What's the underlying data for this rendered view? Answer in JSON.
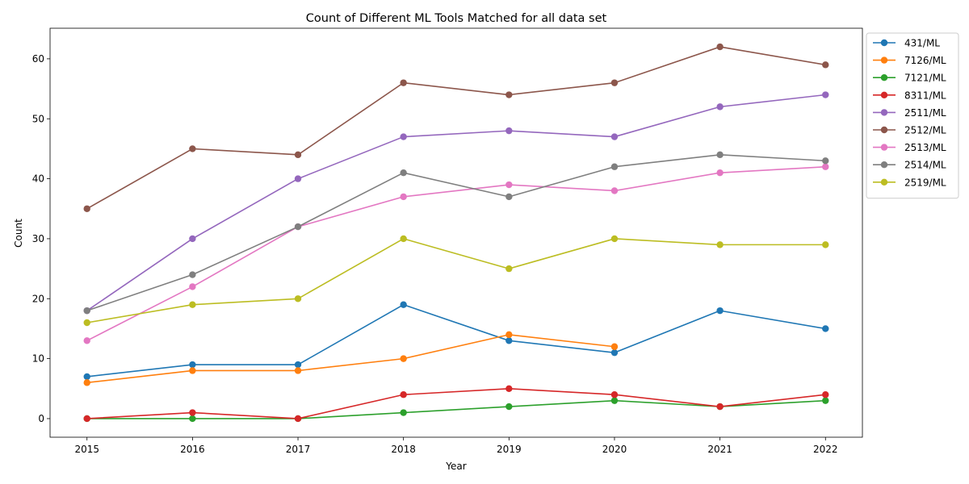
{
  "chart_data": {
    "type": "line",
    "title": "Count of Different ML Tools Matched for all data set",
    "xlabel": "Year",
    "ylabel": "Count",
    "x": [
      2015,
      2016,
      2017,
      2018,
      2019,
      2020,
      2021,
      2022
    ],
    "xticks": [
      "2015",
      "2016",
      "2017",
      "2018",
      "2019",
      "2020",
      "2021",
      "2022"
    ],
    "yticks": [
      0,
      10,
      20,
      30,
      40,
      50,
      60
    ],
    "xlim": [
      2014.65,
      2022.35
    ],
    "ylim": [
      -3.1,
      65.1
    ],
    "grid": false,
    "legend_position": "outside-right",
    "series": [
      {
        "name": "431/ML",
        "color": "#1f77b4",
        "x": [
          2015,
          2016,
          2017,
          2018,
          2019,
          2020,
          2021,
          2022
        ],
        "values": [
          7,
          9,
          9,
          19,
          13,
          11,
          18,
          15
        ]
      },
      {
        "name": "7126/ML",
        "color": "#ff7f0e",
        "x": [
          2015,
          2016,
          2017,
          2018,
          2019,
          2020
        ],
        "values": [
          6,
          8,
          8,
          10,
          14,
          12
        ]
      },
      {
        "name": "7121/ML",
        "color": "#2ca02c",
        "x": [
          2015,
          2016,
          2017,
          2018,
          2019,
          2020,
          2021,
          2022
        ],
        "values": [
          0,
          0,
          0,
          1,
          2,
          3,
          2,
          3
        ]
      },
      {
        "name": "8311/ML",
        "color": "#d62728",
        "x": [
          2015,
          2016,
          2017,
          2018,
          2019,
          2020,
          2021,
          2022
        ],
        "values": [
          0,
          1,
          0,
          4,
          5,
          4,
          2,
          4
        ]
      },
      {
        "name": "2511/ML",
        "color": "#9467bd",
        "x": [
          2015,
          2016,
          2017,
          2018,
          2019,
          2020,
          2021,
          2022
        ],
        "values": [
          18,
          30,
          40,
          47,
          48,
          47,
          52,
          54
        ]
      },
      {
        "name": "2512/ML",
        "color": "#8c564b",
        "x": [
          2015,
          2016,
          2017,
          2018,
          2019,
          2020,
          2021,
          2022
        ],
        "values": [
          35,
          45,
          44,
          56,
          54,
          56,
          62,
          59
        ]
      },
      {
        "name": "2513/ML",
        "color": "#e377c2",
        "x": [
          2015,
          2016,
          2017,
          2018,
          2019,
          2020,
          2021,
          2022
        ],
        "values": [
          13,
          22,
          32,
          37,
          39,
          38,
          41,
          42
        ]
      },
      {
        "name": "2514/ML",
        "color": "#7f7f7f",
        "x": [
          2015,
          2016,
          2017,
          2018,
          2019,
          2020,
          2021,
          2022
        ],
        "values": [
          18,
          24,
          32,
          41,
          37,
          42,
          44,
          43
        ]
      },
      {
        "name": "2519/ML",
        "color": "#bcbd22",
        "x": [
          2015,
          2016,
          2017,
          2018,
          2019,
          2020,
          2021,
          2022
        ],
        "values": [
          16,
          19,
          20,
          30,
          25,
          30,
          29,
          29
        ]
      }
    ]
  }
}
